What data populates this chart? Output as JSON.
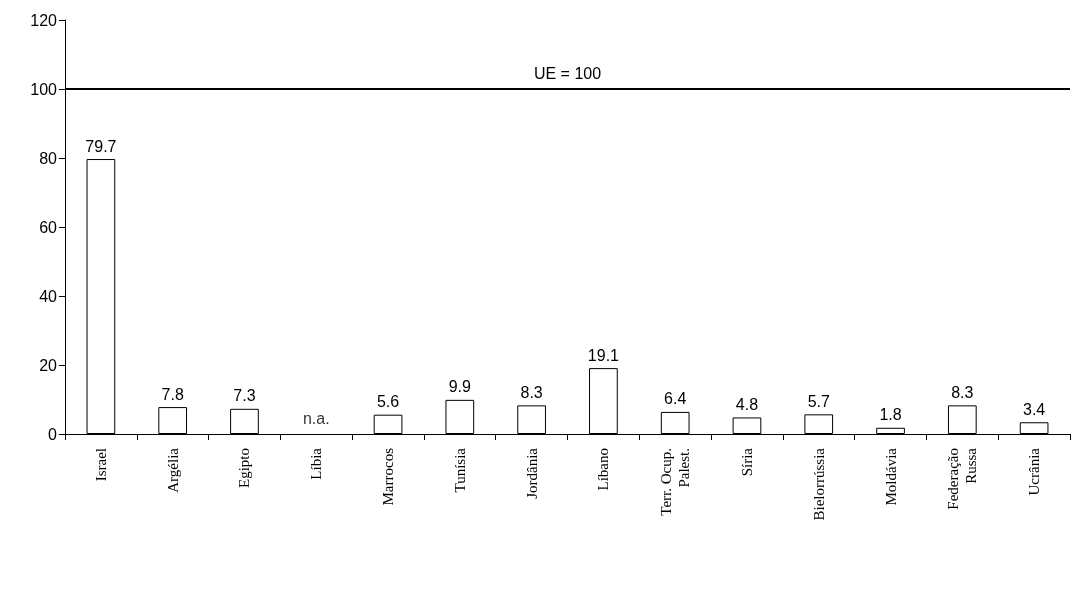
{
  "chart_data": {
    "type": "bar",
    "categories": [
      "Israel",
      "Argélia",
      "Egipto",
      "Líbia",
      "Marrocos",
      "Tunísia",
      "Jordânia",
      "Líbano",
      "Terr. Ocup.\nPalest.",
      "Síria",
      "Bielorrússia",
      "Moldávia",
      "Federação\nRussa",
      "Ucrânia"
    ],
    "values": [
      79.7,
      7.8,
      7.3,
      null,
      5.6,
      9.9,
      8.3,
      19.1,
      6.4,
      4.8,
      5.7,
      1.8,
      8.3,
      3.4
    ],
    "value_labels": [
      "79.7",
      "7.8",
      "7.3",
      "n.a.",
      "5.6",
      "9.9",
      "8.3",
      "19.1",
      "6.4",
      "4.8",
      "5.7",
      "1.8",
      "8.3",
      "3.4"
    ],
    "color": "#ffffff",
    "ylim": [
      0,
      120
    ],
    "yticks": [
      0,
      20,
      40,
      60,
      80,
      100,
      120
    ],
    "grid": false,
    "ref_lines": [
      {
        "axis": "y",
        "value": 100,
        "label": "UE = 100",
        "color": "#000000",
        "line_style": "solid"
      }
    ]
  }
}
